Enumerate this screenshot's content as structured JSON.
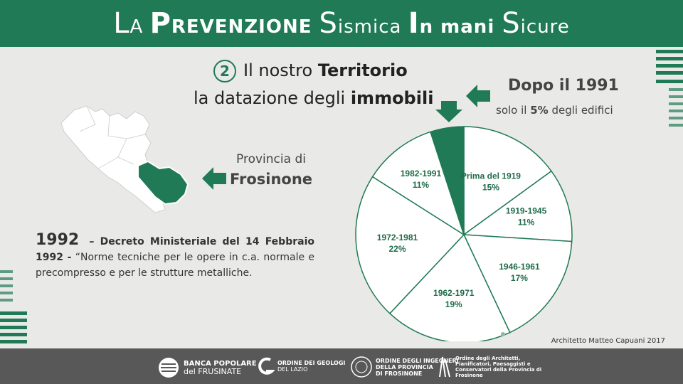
{
  "header": {
    "title_parts": [
      "L",
      "A ",
      "P",
      "REVENZIONE ",
      "S",
      "ismica ",
      "I",
      "n mani ",
      "S",
      "icure"
    ]
  },
  "subtitle": {
    "number": "2",
    "line1_plain": "Il nostro ",
    "line1_bold": "Territorio",
    "line2_plain": "la datazione degli ",
    "line2_bold": "immobili"
  },
  "callout": {
    "title": "Dopo il 1991",
    "sub_prefix": "solo il ",
    "sub_bold": "5%",
    "sub_suffix": " degli edifici"
  },
  "province": {
    "label": "Provincia di",
    "name": "Frosinone"
  },
  "decree": {
    "year": "1992",
    "title": " – Decreto Ministeriale del 14 Febbraio 1992 -",
    "body": " “Norme tecniche per le opere in c.a. normale e precompresso e per le strutture metalliche."
  },
  "credit": "Architetto Matteo Capuani 2017",
  "footer": {
    "logo1_line1": "BANCA POPOLARE",
    "logo1_line2": "del FRUSINATE",
    "logo2_line1": "ORDINE DEI GEOLOGI",
    "logo2_line2": "DEL LAZIO",
    "logo3_line1": "ORDINE DEGLI INGEGNERI",
    "logo3_line2": "DELLA PROVINCIA",
    "logo3_line3": "DI FROSINONE",
    "logo4_line1": "Ordine degli Architetti,",
    "logo4_line2": "Pianificatori, Paesaggisti e",
    "logo4_line3": "Conservatori della Provincia di",
    "logo4_line4": "Frosinone"
  },
  "colors": {
    "accent": "#207a55",
    "pie_fill": "#ffffff",
    "highlight": "#1f7a55"
  },
  "chart_data": {
    "type": "pie",
    "categories": [
      "Prima del 1919",
      "1919-1945",
      "1946-1961",
      "1962-1971",
      "1972-1981",
      "1982-1991",
      "Dopo il 1991"
    ],
    "values": [
      15,
      11,
      17,
      19,
      22,
      11,
      5
    ],
    "labels": [
      "15%",
      "11%",
      "17%",
      "19%",
      "22%",
      "11%",
      ""
    ],
    "highlight": "Dopo il 1991"
  }
}
